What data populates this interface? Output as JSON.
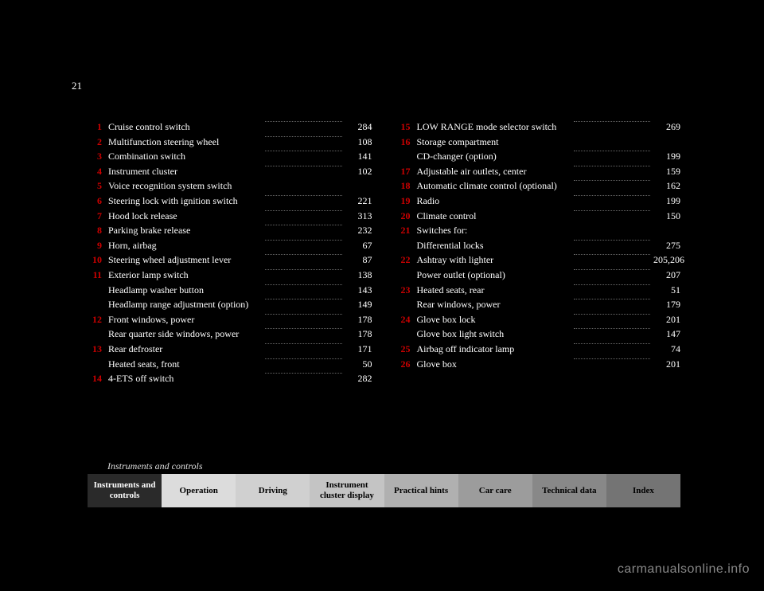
{
  "page_number": "21",
  "section_label": "Instruments and controls",
  "left_items": [
    {
      "n": "1",
      "label": "Cruise control switch",
      "pg": "284"
    },
    {
      "n": "2",
      "label": "Multifunction steering wheel",
      "pg": "108"
    },
    {
      "n": "3",
      "label": "Combination switch",
      "pg": "141"
    },
    {
      "n": "4",
      "label": "Instrument cluster",
      "pg": "102"
    },
    {
      "n": "5",
      "label": "Voice recognition system switch",
      "pg": ""
    },
    {
      "n": "6",
      "label": "Steering lock with ignition switch",
      "pg": "221"
    },
    {
      "n": "7",
      "label": "Hood lock release",
      "pg": "313"
    },
    {
      "n": "8",
      "label": "Parking brake release",
      "pg": "232"
    },
    {
      "n": "9",
      "label": "Horn, airbag",
      "pg": "67"
    },
    {
      "n": "10",
      "label": "Steering wheel adjustment lever",
      "pg": "87"
    },
    {
      "n": "11",
      "label": "Exterior lamp switch",
      "pg": "138"
    },
    {
      "n": "",
      "label": "Headlamp washer button",
      "pg": "143"
    },
    {
      "n": "",
      "label": "Headlamp range adjustment (option)",
      "pg": "149"
    },
    {
      "n": "12",
      "label": "Front windows, power",
      "pg": "178"
    },
    {
      "n": "",
      "label": "Rear quarter side windows, power",
      "pg": "178"
    },
    {
      "n": "13",
      "label": "Rear defroster",
      "pg": "171"
    },
    {
      "n": "",
      "label": "Heated seats, front",
      "pg": "50"
    },
    {
      "n": "14",
      "label": "4-ETS off switch",
      "pg": "282"
    }
  ],
  "right_items": [
    {
      "n": "15",
      "label": "LOW RANGE mode selector switch",
      "pg": "269"
    },
    {
      "n": "16",
      "label": "Storage compartment",
      "pg": ""
    },
    {
      "n": "",
      "label": "CD-changer (option)",
      "pg": "199"
    },
    {
      "n": "17",
      "label": "Adjustable air outlets, center",
      "pg": "159"
    },
    {
      "n": "18",
      "label": "Automatic climate control (optional)",
      "pg": "162"
    },
    {
      "n": "19",
      "label": "Radio",
      "pg": "199"
    },
    {
      "n": "20",
      "label": "Climate control",
      "pg": "150"
    },
    {
      "n": "21",
      "label": "Switches for:",
      "pg": ""
    },
    {
      "n": "",
      "label": "Differential locks",
      "pg": "275"
    },
    {
      "n": "22",
      "label": "Ashtray with lighter",
      "pg": "205,206"
    },
    {
      "n": "",
      "label": "Power outlet (optional)",
      "pg": "207"
    },
    {
      "n": "23",
      "label": "Heated seats, rear",
      "pg": "51"
    },
    {
      "n": "",
      "label": "Rear windows, power",
      "pg": "179"
    },
    {
      "n": "24",
      "label": "Glove box lock",
      "pg": "201"
    },
    {
      "n": "",
      "label": "Glove box light switch",
      "pg": "147"
    },
    {
      "n": "25",
      "label": "Airbag off indicator lamp",
      "pg": "74"
    },
    {
      "n": "26",
      "label": "Glove box",
      "pg": "201"
    }
  ],
  "nav": [
    {
      "label": "Instruments and controls",
      "bg": "#2a2a2a",
      "active": true
    },
    {
      "label": "Operation",
      "bg": "#dcdcdc"
    },
    {
      "label": "Driving",
      "bg": "#d0d0d0"
    },
    {
      "label": "Instrument cluster display",
      "bg": "#c4c4c4"
    },
    {
      "label": "Practical hints",
      "bg": "#b0b0b0"
    },
    {
      "label": "Car care",
      "bg": "#9c9c9c"
    },
    {
      "label": "Technical data",
      "bg": "#888888"
    },
    {
      "label": "Index",
      "bg": "#747474"
    }
  ],
  "watermark": "carmanualsonline.info"
}
